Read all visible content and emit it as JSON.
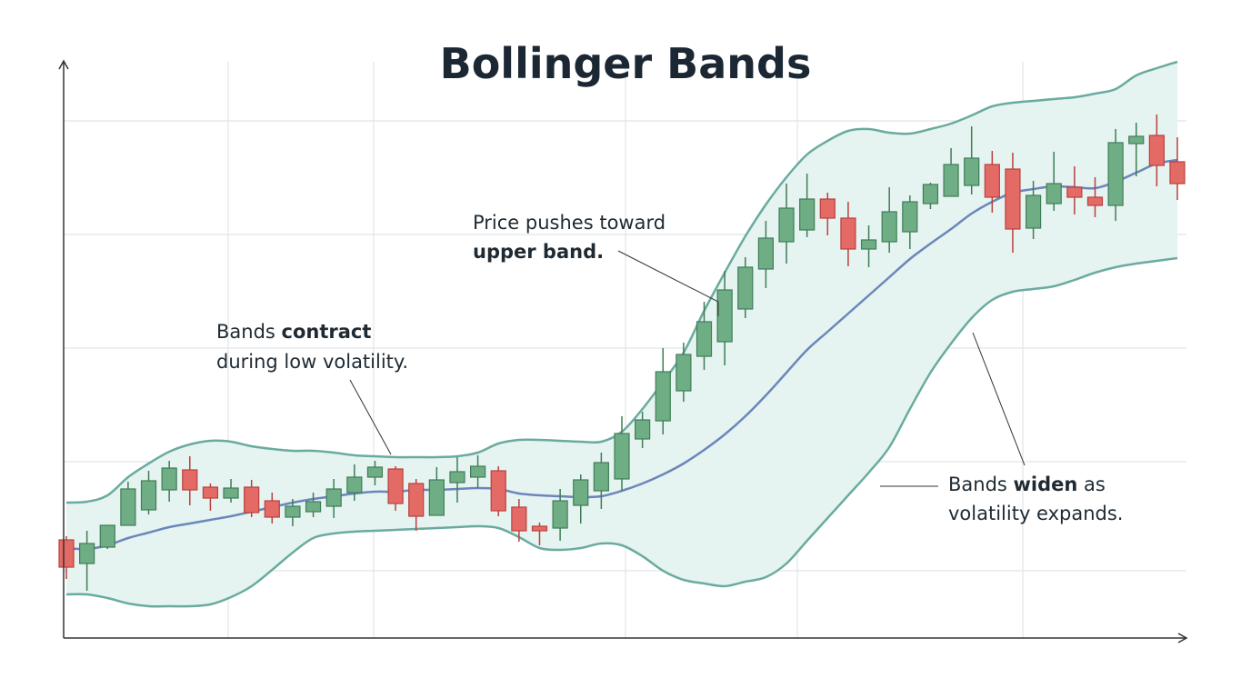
{
  "chart_data": {
    "type": "candlestick",
    "title": "Bollinger Bands",
    "xlabel": "",
    "ylabel": "",
    "ylim": [
      0,
      126
    ],
    "grid": true,
    "colors": {
      "up": "#6fae85",
      "up_edge": "#3f7d57",
      "down": "#e46a66",
      "down_edge": "#b9413e",
      "band_edge": "#6aaba0",
      "band_fill": "#e5f3f1",
      "middle": "#6c86ba",
      "axis": "#333333",
      "grid": "#e2e4e6"
    },
    "candles": [
      {
        "o": 21.2,
        "h": 22,
        "l": 12.6,
        "c": 15.2
      },
      {
        "o": 16,
        "h": 23.2,
        "l": 10,
        "c": 20.4
      },
      {
        "o": 19.6,
        "h": 24.4,
        "l": 19.2,
        "c": 24.4
      },
      {
        "o": 24.4,
        "h": 34,
        "l": 24.4,
        "c": 32.4
      },
      {
        "o": 27.8,
        "h": 36.4,
        "l": 26.8,
        "c": 34.2
      },
      {
        "o": 32.2,
        "h": 38.6,
        "l": 29.6,
        "c": 37
      },
      {
        "o": 36.6,
        "h": 39.6,
        "l": 28.8,
        "c": 32.2
      },
      {
        "o": 32.8,
        "h": 33.6,
        "l": 27.6,
        "c": 30.4
      },
      {
        "o": 30.4,
        "h": 34.6,
        "l": 29.4,
        "c": 32.6
      },
      {
        "o": 32.8,
        "h": 34.4,
        "l": 26.2,
        "c": 27.2
      },
      {
        "o": 29.8,
        "h": 31.6,
        "l": 24.8,
        "c": 26.2
      },
      {
        "o": 26.2,
        "h": 30.2,
        "l": 24.2,
        "c": 28.6
      },
      {
        "o": 27.4,
        "h": 31.6,
        "l": 26.2,
        "c": 29.6
      },
      {
        "o": 28.6,
        "h": 34.6,
        "l": 26,
        "c": 32.4
      },
      {
        "o": 31.6,
        "h": 37.8,
        "l": 29.8,
        "c": 35
      },
      {
        "o": 35,
        "h": 38.6,
        "l": 33.2,
        "c": 37.2
      },
      {
        "o": 36.8,
        "h": 37.4,
        "l": 27.6,
        "c": 29.2
      },
      {
        "o": 33.6,
        "h": 34.6,
        "l": 23.2,
        "c": 26.4
      },
      {
        "o": 26.6,
        "h": 37.2,
        "l": 26.6,
        "c": 34.4
      },
      {
        "o": 33.8,
        "h": 39.4,
        "l": 29.4,
        "c": 36.2
      },
      {
        "o": 35,
        "h": 39.8,
        "l": 32.6,
        "c": 37.4
      },
      {
        "o": 36.4,
        "h": 37.4,
        "l": 26.4,
        "c": 27.6
      },
      {
        "o": 28.4,
        "h": 30.2,
        "l": 20.8,
        "c": 23.2
      },
      {
        "o": 24.2,
        "h": 25,
        "l": 20,
        "c": 23.2
      },
      {
        "o": 23.8,
        "h": 32.4,
        "l": 21,
        "c": 29.8
      },
      {
        "o": 28.8,
        "h": 35.6,
        "l": 24.8,
        "c": 34.4
      },
      {
        "o": 32,
        "h": 40.4,
        "l": 28,
        "c": 38.2
      },
      {
        "o": 34.6,
        "h": 48.4,
        "l": 32,
        "c": 44.6
      },
      {
        "o": 43.4,
        "h": 49.4,
        "l": 41.4,
        "c": 47.6
      },
      {
        "o": 47.4,
        "h": 63.4,
        "l": 44.4,
        "c": 58.2
      },
      {
        "o": 54,
        "h": 64.6,
        "l": 51.6,
        "c": 62
      },
      {
        "o": 61.6,
        "h": 73.6,
        "l": 58.6,
        "c": 69.2
      },
      {
        "o": 64.8,
        "h": 80.4,
        "l": 59.6,
        "c": 76.2
      },
      {
        "o": 72,
        "h": 83.4,
        "l": 70,
        "c": 81.2
      },
      {
        "o": 80.8,
        "h": 91.4,
        "l": 76.6,
        "c": 87.6
      },
      {
        "o": 86.8,
        "h": 99.6,
        "l": 82,
        "c": 94.2
      },
      {
        "o": 89.4,
        "h": 101.8,
        "l": 87.8,
        "c": 96.2
      },
      {
        "o": 96.2,
        "h": 97.6,
        "l": 88.2,
        "c": 92
      },
      {
        "o": 92,
        "h": 95.6,
        "l": 81.4,
        "c": 85.2
      },
      {
        "o": 85.2,
        "h": 90.4,
        "l": 81.2,
        "c": 87.2
      },
      {
        "o": 86.8,
        "h": 98.8,
        "l": 84.4,
        "c": 93.4
      },
      {
        "o": 89,
        "h": 97,
        "l": 85.2,
        "c": 95.6
      },
      {
        "o": 95.2,
        "h": 99.8,
        "l": 94,
        "c": 99.4
      },
      {
        "o": 96.8,
        "h": 107.4,
        "l": 96.8,
        "c": 103.8
      },
      {
        "o": 99.2,
        "h": 112.2,
        "l": 97.2,
        "c": 105.2
      },
      {
        "o": 103.8,
        "h": 106.8,
        "l": 93.2,
        "c": 96.6
      },
      {
        "o": 102.8,
        "h": 106.4,
        "l": 84.4,
        "c": 89.6
      },
      {
        "o": 89.8,
        "h": 100.2,
        "l": 87.4,
        "c": 97
      },
      {
        "o": 95.2,
        "h": 106.6,
        "l": 93.6,
        "c": 99.6
      },
      {
        "o": 98.8,
        "h": 103.4,
        "l": 92.8,
        "c": 96.6
      },
      {
        "o": 96.6,
        "h": 101,
        "l": 92.2,
        "c": 94.8
      },
      {
        "o": 94.8,
        "h": 111.6,
        "l": 91.4,
        "c": 108.6
      },
      {
        "o": 108.4,
        "h": 113,
        "l": 101.2,
        "c": 110
      },
      {
        "o": 110.2,
        "h": 114.8,
        "l": 99,
        "c": 103.6
      },
      {
        "o": 104.4,
        "h": 109.8,
        "l": 96,
        "c": 99.6
      }
    ],
    "upper_band": [
      29.4,
      29.6,
      31,
      35,
      38,
      40.6,
      42.2,
      43,
      42.8,
      41.8,
      41.2,
      40.8,
      40.8,
      40.4,
      39.8,
      39.6,
      39.4,
      39.4,
      39.4,
      39.6,
      40.4,
      42.4,
      43.2,
      43.2,
      43,
      42.8,
      42.8,
      45,
      50,
      56,
      62.4,
      71.6,
      80,
      88,
      95,
      101,
      106,
      109,
      111.2,
      111.6,
      110.8,
      110.6,
      111.6,
      112.8,
      114.6,
      116.6,
      117.4,
      117.8,
      118.2,
      118.6,
      119.4,
      120.4,
      123.4,
      125,
      126.4
    ],
    "middle_band": [
      19.4,
      19.2,
      20,
      21.6,
      22.8,
      24,
      24.8,
      25.6,
      26.4,
      27.4,
      28.4,
      29.4,
      30.2,
      30.8,
      31.4,
      31.8,
      31.8,
      32.2,
      32.2,
      32.4,
      32.6,
      32.4,
      31.4,
      31,
      30.8,
      30.6,
      30.8,
      32,
      33.6,
      35.6,
      38,
      41,
      44.4,
      48.4,
      53,
      58,
      63,
      67,
      71,
      75,
      79,
      83,
      86.4,
      89.6,
      93,
      95.6,
      97.6,
      98.4,
      99,
      98.8,
      98.6,
      100,
      102,
      104,
      104.8
    ],
    "lower_band": [
      9.2,
      9.2,
      8.4,
      7.2,
      6.6,
      6.6,
      6.6,
      7,
      8.6,
      11,
      14.6,
      18.4,
      21.6,
      22.6,
      23,
      23.2,
      23.4,
      23.6,
      23.8,
      24,
      24.2,
      23.8,
      21.8,
      19.4,
      19,
      19.4,
      20.4,
      20,
      17.6,
      14.4,
      12.4,
      11.6,
      11,
      12,
      13,
      16,
      21,
      26,
      31,
      36,
      41.6,
      50,
      58,
      64.4,
      70,
      74,
      75.8,
      76.4,
      77,
      78.4,
      80,
      81.2,
      82,
      82.6,
      83.2
    ],
    "annotations": {
      "contract": {
        "line1_pre": "Bands ",
        "line1_bold": "contract",
        "line2": "during low volatility."
      },
      "upper": {
        "line1": "Price pushes toward",
        "line2_bold": "upper band."
      },
      "widen": {
        "line1_pre": "Bands ",
        "line1_bold": "widen",
        "line1_post": " as",
        "line2": "volatility expands."
      }
    }
  }
}
